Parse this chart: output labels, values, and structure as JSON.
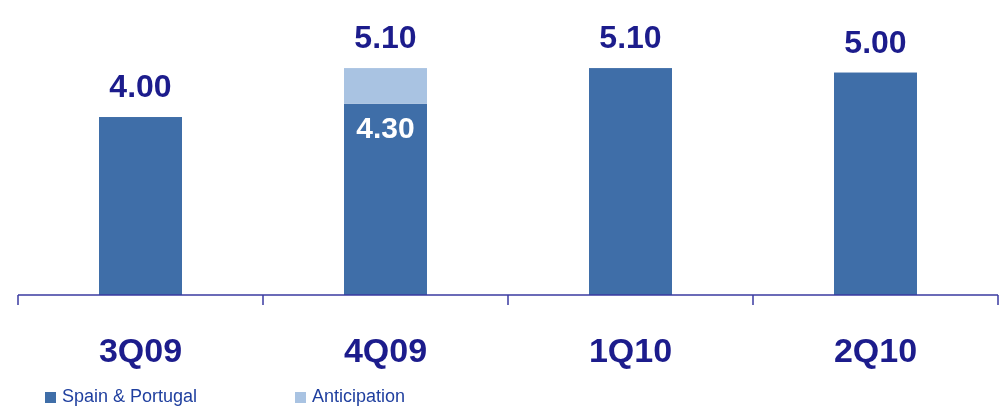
{
  "chart_data": {
    "type": "bar",
    "stacked": true,
    "categories": [
      "3Q09",
      "4Q09",
      "1Q10",
      "2Q10"
    ],
    "series": [
      {
        "name": "Spain & Portugal",
        "color": "#3f6ea8",
        "values": [
          4.0,
          4.3,
          5.1,
          5.0
        ],
        "value_labels": [
          null,
          "4.30",
          null,
          null
        ]
      },
      {
        "name": "Anticipation",
        "color": "#a9c3e2",
        "values": [
          null,
          0.8,
          null,
          null
        ]
      }
    ],
    "totals": [
      "4.00",
      "5.10",
      "5.10",
      "5.00"
    ],
    "legend": "bottom left"
  }
}
